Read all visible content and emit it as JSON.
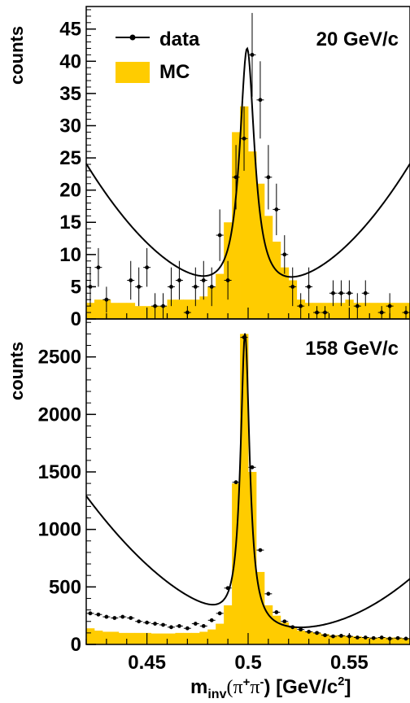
{
  "chart_data": [
    {
      "type": "bar",
      "panel": "top",
      "annotation": "20 GeV/c",
      "ylabel": "counts",
      "xlim": [
        0.42,
        0.58
      ],
      "ylim": [
        0,
        48.5
      ],
      "yticks": [
        0,
        5,
        10,
        15,
        20,
        25,
        30,
        35,
        40,
        45
      ],
      "grid": false,
      "legend": {
        "placement": "top-left",
        "entries": [
          "data",
          "MC"
        ]
      },
      "colors": {
        "mc": "#ffcc00",
        "data": "#000000",
        "fit": "#000000"
      },
      "mc_bin_edges_start": 0.42,
      "mc_bin_width": 0.004,
      "mc_values": [
        2.5,
        3,
        3,
        2.5,
        2.5,
        2.5,
        2,
        2,
        2,
        2,
        3,
        3,
        3,
        3,
        3.5,
        5,
        7,
        15,
        29,
        33,
        26,
        21,
        16,
        12,
        8,
        6,
        3,
        2.5,
        2.5,
        2.5,
        2.5,
        2.5,
        3,
        2.5,
        2.5,
        2.5,
        2.5,
        2.5,
        2.5,
        2.5
      ],
      "data_points": [
        {
          "x": 0.422,
          "y": 5,
          "err": 3
        },
        {
          "x": 0.426,
          "y": 8,
          "err": 3
        },
        {
          "x": 0.43,
          "y": 3,
          "err": 2
        },
        {
          "x": 0.442,
          "y": 6,
          "err": 3
        },
        {
          "x": 0.446,
          "y": 5,
          "err": 3
        },
        {
          "x": 0.45,
          "y": 8,
          "err": 3
        },
        {
          "x": 0.454,
          "y": 2,
          "err": 2
        },
        {
          "x": 0.458,
          "y": 2,
          "err": 2
        },
        {
          "x": 0.462,
          "y": 5,
          "err": 3
        },
        {
          "x": 0.466,
          "y": 6,
          "err": 3
        },
        {
          "x": 0.47,
          "y": 1,
          "err": 1
        },
        {
          "x": 0.474,
          "y": 5,
          "err": 3
        },
        {
          "x": 0.478,
          "y": 6,
          "err": 3
        },
        {
          "x": 0.482,
          "y": 5,
          "err": 3
        },
        {
          "x": 0.486,
          "y": 13,
          "err": 4
        },
        {
          "x": 0.49,
          "y": 6,
          "err": 3
        },
        {
          "x": 0.494,
          "y": 22,
          "err": 5
        },
        {
          "x": 0.498,
          "y": 28,
          "err": 5
        },
        {
          "x": 0.502,
          "y": 41,
          "err": 6.5
        },
        {
          "x": 0.506,
          "y": 34,
          "err": 6
        },
        {
          "x": 0.51,
          "y": 22,
          "err": 5
        },
        {
          "x": 0.514,
          "y": 17,
          "err": 4
        },
        {
          "x": 0.518,
          "y": 10,
          "err": 3
        },
        {
          "x": 0.522,
          "y": 5,
          "err": 3
        },
        {
          "x": 0.526,
          "y": 2,
          "err": 2
        },
        {
          "x": 0.53,
          "y": 5,
          "err": 3
        },
        {
          "x": 0.534,
          "y": 1,
          "err": 1
        },
        {
          "x": 0.538,
          "y": 1,
          "err": 1
        },
        {
          "x": 0.542,
          "y": 4,
          "err": 2
        },
        {
          "x": 0.546,
          "y": 4,
          "err": 2
        },
        {
          "x": 0.55,
          "y": 4,
          "err": 2
        },
        {
          "x": 0.554,
          "y": 2,
          "err": 2
        },
        {
          "x": 0.558,
          "y": 4,
          "err": 2
        },
        {
          "x": 0.566,
          "y": 1,
          "err": 1
        },
        {
          "x": 0.57,
          "y": 2,
          "err": 2
        },
        {
          "x": 0.578,
          "y": 1,
          "err": 1
        }
      ],
      "fit": {
        "mean": 0.4995,
        "gamma": 0.0045,
        "peak": 38.5,
        "bg_a": 3.5,
        "bg_b": -200,
        "bg_c": 3200
      }
    },
    {
      "type": "bar",
      "panel": "bottom",
      "annotation": "158 GeV/c",
      "ylabel": "counts",
      "xlabel": "m",
      "xlabel_sub": "inv",
      "xlabel_rest": "(π",
      "xlabel_sup1": "+",
      "xlabel_mid": "π",
      "xlabel_sup2": "-",
      "xlabel_unit": ") [GeV/c",
      "xlabel_sup3": "2",
      "xlabel_end": "]",
      "xlim": [
        0.42,
        0.58
      ],
      "xticks": [
        0.45,
        0.5,
        0.55
      ],
      "xtick_labels": [
        "0.45",
        "0.5",
        "0.55"
      ],
      "ylim": [
        0,
        2830
      ],
      "yticks": [
        0,
        500,
        1000,
        1500,
        2000,
        2500
      ],
      "grid": false,
      "colors": {
        "mc": "#ffcc00",
        "data": "#000000",
        "fit": "#000000"
      },
      "mc_bin_edges_start": 0.42,
      "mc_bin_width": 0.004,
      "mc_values": [
        140,
        120,
        110,
        110,
        100,
        100,
        100,
        100,
        95,
        95,
        95,
        100,
        100,
        100,
        110,
        130,
        180,
        340,
        1400,
        2700,
        1500,
        630,
        340,
        250,
        190,
        150,
        120,
        110,
        100,
        90,
        80,
        80,
        70,
        70,
        60,
        60,
        60,
        60,
        60,
        55
      ],
      "data_points": [
        {
          "x": 0.422,
          "y": 270
        },
        {
          "x": 0.426,
          "y": 260
        },
        {
          "x": 0.43,
          "y": 240
        },
        {
          "x": 0.434,
          "y": 230
        },
        {
          "x": 0.438,
          "y": 240
        },
        {
          "x": 0.442,
          "y": 230
        },
        {
          "x": 0.446,
          "y": 200
        },
        {
          "x": 0.45,
          "y": 190
        },
        {
          "x": 0.454,
          "y": 180
        },
        {
          "x": 0.458,
          "y": 170
        },
        {
          "x": 0.462,
          "y": 150
        },
        {
          "x": 0.466,
          "y": 160
        },
        {
          "x": 0.47,
          "y": 140
        },
        {
          "x": 0.474,
          "y": 180
        },
        {
          "x": 0.478,
          "y": 160
        },
        {
          "x": 0.482,
          "y": 210
        },
        {
          "x": 0.486,
          "y": 270
        },
        {
          "x": 0.49,
          "y": 490
        },
        {
          "x": 0.494,
          "y": 1410
        },
        {
          "x": 0.498,
          "y": 2670
        },
        {
          "x": 0.502,
          "y": 1540
        },
        {
          "x": 0.506,
          "y": 820
        },
        {
          "x": 0.51,
          "y": 440
        },
        {
          "x": 0.514,
          "y": 280
        },
        {
          "x": 0.518,
          "y": 200
        },
        {
          "x": 0.522,
          "y": 150
        },
        {
          "x": 0.526,
          "y": 130
        },
        {
          "x": 0.53,
          "y": 110
        },
        {
          "x": 0.534,
          "y": 100
        },
        {
          "x": 0.538,
          "y": 80
        },
        {
          "x": 0.542,
          "y": 70
        },
        {
          "x": 0.546,
          "y": 75
        },
        {
          "x": 0.55,
          "y": 70
        },
        {
          "x": 0.554,
          "y": 60
        },
        {
          "x": 0.558,
          "y": 60
        },
        {
          "x": 0.562,
          "y": 55
        },
        {
          "x": 0.566,
          "y": 60
        },
        {
          "x": 0.57,
          "y": 50
        },
        {
          "x": 0.574,
          "y": 55
        },
        {
          "x": 0.578,
          "y": 50
        }
      ],
      "fit": {
        "mean": 0.4985,
        "gamma": 0.0027,
        "peak": 2540,
        "bg_a": 160,
        "bg_b": -4500,
        "bg_c": 120000
      }
    }
  ],
  "legend": {
    "data_label": "data",
    "mc_label": "MC"
  }
}
